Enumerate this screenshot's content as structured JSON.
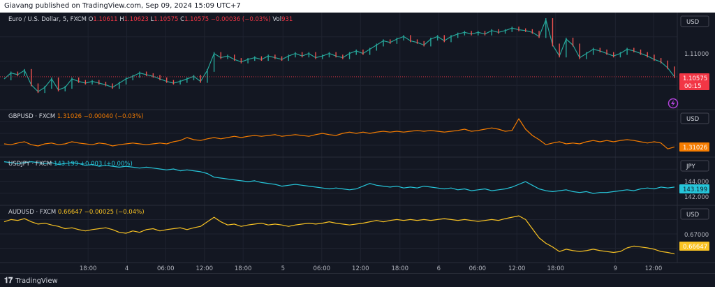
{
  "header": {
    "published": "Giavang published on TradingView.com, Sep 09, 2024 15:09 UTC+7"
  },
  "footer": {
    "brand": "TradingView"
  },
  "colors": {
    "bg": "#131722",
    "grid": "#1f2330",
    "eur": "#26a69a",
    "eur_down": "#ef5350",
    "gbp": "#f57c00",
    "jpy": "#26c6da",
    "aud": "#f9c323",
    "eur_label": "#f23645"
  },
  "chart_data": [
    {
      "type": "line",
      "name": "EURUSD",
      "title": "Euro / U.S. Dollar, 5, FXCM",
      "ohlc": {
        "open_label": "O",
        "open": "1.10611",
        "high_label": "H",
        "high": "1.10623",
        "low_label": "L",
        "low": "1.10575",
        "close_label": "C",
        "close": "1.10575",
        "change": "−0.00036 (−0.03%)"
      },
      "volume_label": "Vol",
      "volume": "931",
      "currency": "USD",
      "y_ticks": [
        "1.11000"
      ],
      "last_price": "1.10575",
      "countdown": "00:15",
      "ylim": [
        1.1022,
        1.113
      ],
      "values": [
        1.1055,
        1.1062,
        1.106,
        1.1065,
        1.1048,
        1.104,
        1.1045,
        1.1055,
        1.1042,
        1.1045,
        1.1055,
        1.1052,
        1.105,
        1.1052,
        1.105,
        1.1048,
        1.1045,
        1.105,
        1.1055,
        1.1058,
        1.1062,
        1.106,
        1.1058,
        1.1055,
        1.1052,
        1.105,
        1.1052,
        1.1055,
        1.1058,
        1.1052,
        1.1065,
        1.1085,
        1.108,
        1.1082,
        1.1078,
        1.1075,
        1.1078,
        1.108,
        1.1078,
        1.1082,
        1.108,
        1.1078,
        1.1082,
        1.1085,
        1.1082,
        1.1085,
        1.108,
        1.1082,
        1.1085,
        1.1082,
        1.108,
        1.1085,
        1.1088,
        1.1085,
        1.109,
        1.1095,
        1.11,
        1.1098,
        1.1102,
        1.1105,
        1.11,
        1.1098,
        1.1095,
        1.1102,
        1.1105,
        1.11,
        1.1105,
        1.1108,
        1.111,
        1.1108,
        1.111,
        1.1108,
        1.1112,
        1.111,
        1.1112,
        1.1115,
        1.1113,
        1.1112,
        1.111,
        1.1105,
        1.1125,
        1.1095,
        1.1082,
        1.1102,
        1.1095,
        1.108,
        1.1085,
        1.109,
        1.1088,
        1.1085,
        1.1082,
        1.1085,
        1.109,
        1.1088,
        1.1085,
        1.1082,
        1.1078,
        1.1075,
        1.1068,
        1.10575
      ]
    },
    {
      "type": "line",
      "name": "GBPUSD",
      "title": "GBPUSD · FXCM",
      "value": "1.31026",
      "change": "−0.00040 (−0.03%)",
      "currency": "USD",
      "last_price": "1.31026",
      "ylim": [
        1.3085,
        1.3185
      ],
      "values": [
        1.311,
        1.3108,
        1.3112,
        1.3115,
        1.3108,
        1.3105,
        1.311,
        1.3112,
        1.3108,
        1.311,
        1.3115,
        1.3112,
        1.311,
        1.3108,
        1.3112,
        1.311,
        1.3105,
        1.3108,
        1.311,
        1.3112,
        1.311,
        1.3108,
        1.311,
        1.3112,
        1.311,
        1.3115,
        1.3118,
        1.3125,
        1.312,
        1.3118,
        1.3122,
        1.3125,
        1.3122,
        1.3125,
        1.3128,
        1.3125,
        1.3128,
        1.313,
        1.3128,
        1.313,
        1.3132,
        1.3128,
        1.313,
        1.3132,
        1.313,
        1.3128,
        1.3132,
        1.3135,
        1.3132,
        1.313,
        1.3135,
        1.3138,
        1.3135,
        1.3138,
        1.3135,
        1.3138,
        1.314,
        1.3138,
        1.314,
        1.3138,
        1.314,
        1.3142,
        1.314,
        1.3142,
        1.314,
        1.3138,
        1.314,
        1.3142,
        1.3145,
        1.314,
        1.3142,
        1.3145,
        1.3148,
        1.3145,
        1.314,
        1.3142,
        1.317,
        1.3145,
        1.313,
        1.312,
        1.3108,
        1.3112,
        1.3115,
        1.311,
        1.3112,
        1.311,
        1.3115,
        1.3118,
        1.3115,
        1.3118,
        1.3115,
        1.3118,
        1.312,
        1.3118,
        1.3115,
        1.3112,
        1.3115,
        1.3112,
        1.3098,
        1.31026
      ]
    },
    {
      "type": "line",
      "name": "USDJPY",
      "title": "USDJPY · FXCM",
      "value": "143.199",
      "change": "+0.003 (+0.00%)",
      "currency": "JPY",
      "y_ticks": [
        "144.000",
        "142.000"
      ],
      "last_price": "143.199",
      "ylim": [
        141.5,
        146.2
      ],
      "values": [
        146.0,
        145.9,
        145.8,
        145.9,
        146.0,
        145.9,
        145.8,
        145.9,
        145.7,
        145.8,
        145.9,
        145.8,
        145.6,
        145.7,
        145.5,
        145.6,
        145.5,
        145.4,
        145.5,
        145.4,
        145.3,
        145.4,
        145.3,
        145.2,
        145.1,
        145.2,
        145.0,
        145.1,
        145.0,
        144.9,
        144.7,
        144.3,
        144.2,
        144.1,
        144.0,
        143.9,
        143.8,
        143.9,
        143.7,
        143.6,
        143.5,
        143.3,
        143.4,
        143.5,
        143.4,
        143.3,
        143.2,
        143.1,
        143.0,
        143.1,
        143.0,
        142.9,
        143.0,
        143.3,
        143.6,
        143.4,
        143.3,
        143.2,
        143.3,
        143.1,
        143.2,
        143.1,
        143.3,
        143.2,
        143.1,
        143.0,
        143.1,
        142.9,
        143.0,
        142.8,
        142.9,
        143.0,
        142.8,
        142.9,
        143.0,
        143.2,
        143.5,
        143.8,
        143.4,
        143.0,
        142.8,
        142.7,
        142.8,
        142.9,
        142.7,
        142.6,
        142.7,
        142.5,
        142.6,
        142.6,
        142.7,
        142.8,
        142.9,
        142.8,
        143.0,
        143.1,
        143.0,
        143.2,
        143.1,
        143.199
      ]
    },
    {
      "type": "line",
      "name": "AUDUSD",
      "title": "AUDUSD · FXCM",
      "value": "0.66647",
      "change": "−0.00025 (−0.04%)",
      "currency": "USD",
      "y_ticks": [
        "0.67000"
      ],
      "last_price": "0.66647",
      "ylim": [
        0.6652,
        0.6765
      ],
      "values": [
        0.6735,
        0.674,
        0.6738,
        0.6742,
        0.6735,
        0.673,
        0.6732,
        0.6728,
        0.6725,
        0.672,
        0.6722,
        0.6718,
        0.6715,
        0.6718,
        0.672,
        0.6722,
        0.6718,
        0.6712,
        0.671,
        0.6715,
        0.6712,
        0.6718,
        0.672,
        0.6715,
        0.6718,
        0.672,
        0.6722,
        0.6718,
        0.6722,
        0.6725,
        0.6735,
        0.6745,
        0.6735,
        0.6728,
        0.673,
        0.6725,
        0.6728,
        0.673,
        0.6732,
        0.6728,
        0.673,
        0.6728,
        0.6725,
        0.6728,
        0.673,
        0.6732,
        0.673,
        0.6732,
        0.6735,
        0.6732,
        0.673,
        0.6728,
        0.673,
        0.6732,
        0.6735,
        0.6738,
        0.6735,
        0.6738,
        0.674,
        0.6738,
        0.674,
        0.6738,
        0.674,
        0.6738,
        0.674,
        0.6742,
        0.674,
        0.6738,
        0.674,
        0.6738,
        0.6736,
        0.6738,
        0.674,
        0.6738,
        0.6742,
        0.6745,
        0.6748,
        0.674,
        0.672,
        0.67,
        0.6688,
        0.668,
        0.667,
        0.6675,
        0.6672,
        0.667,
        0.6672,
        0.6675,
        0.6672,
        0.667,
        0.6668,
        0.667,
        0.6678,
        0.6682,
        0.668,
        0.6678,
        0.6675,
        0.667,
        0.6668,
        0.66647
      ]
    }
  ],
  "x_axis": {
    "ticks": [
      "18:00",
      "4",
      "06:00",
      "12:00",
      "18:00",
      "5",
      "06:00",
      "12:00",
      "18:00",
      "6",
      "06:00",
      "12:00",
      "18:00",
      "9",
      "12:00"
    ],
    "tick_positions": [
      0.0734,
      0.1368,
      0.2005,
      0.264,
      0.3274,
      0.3928,
      0.4563,
      0.5198,
      0.5844,
      0.648,
      0.7115,
      0.776,
      0.8396,
      0.9375,
      1.0
    ]
  }
}
